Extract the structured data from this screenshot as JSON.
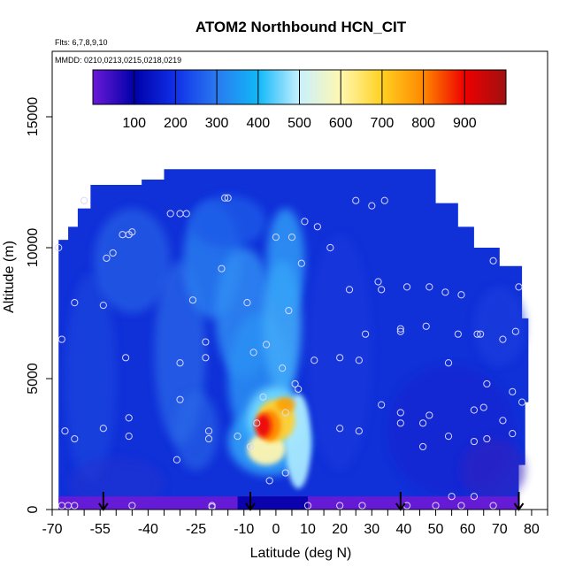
{
  "chart_data": {
    "type": "heatmap",
    "title": "ATOM2 Northbound HCN_CIT",
    "flights_label": "Flts: 6,7,8,9,10",
    "dates_label": "MMDD: 0210,0213,0215,0218,0219",
    "xlabel": "Latitude (deg N)",
    "ylabel": "Altitude (m)",
    "xlim": [
      -70,
      85
    ],
    "ylim": [
      0,
      17500
    ],
    "x_ticks": [
      -70,
      -55,
      -40,
      -25,
      -10,
      0,
      10,
      20,
      30,
      40,
      50,
      60,
      70,
      80
    ],
    "y_ticks": [
      0,
      5000,
      10000,
      15000
    ],
    "colorbar": {
      "range": [
        0,
        1000
      ],
      "ticks": [
        100,
        200,
        300,
        400,
        500,
        600,
        700,
        800,
        900
      ],
      "colors": [
        "#6a1ad6",
        "#0000a8",
        "#1030e8",
        "#2a7af0",
        "#10b8f8",
        "#c8f0ff",
        "#fff8b0",
        "#ffd020",
        "#ff8800",
        "#ee0000",
        "#a01010"
      ]
    },
    "arrows_latitude": [
      -54,
      -8,
      39,
      76
    ],
    "samples": [
      [
        -68,
        10000
      ],
      [
        -67,
        6500
      ],
      [
        -67,
        150
      ],
      [
        -65,
        150
      ],
      [
        -63,
        150
      ],
      [
        -66,
        3000
      ],
      [
        -63,
        2700
      ],
      [
        -63,
        7900
      ],
      [
        -60,
        11800
      ],
      [
        -54,
        3100
      ],
      [
        -53,
        9600
      ],
      [
        -54,
        7800
      ],
      [
        -51,
        9800
      ],
      [
        -48,
        10500
      ],
      [
        -46,
        10500
      ],
      [
        -45,
        10600
      ],
      [
        -47,
        5800
      ],
      [
        -46,
        3500
      ],
      [
        -46,
        2800
      ],
      [
        -45,
        150
      ],
      [
        -33,
        11300
      ],
      [
        -30,
        11300
      ],
      [
        -28,
        11300
      ],
      [
        -30,
        4200
      ],
      [
        -31,
        1900
      ],
      [
        -30,
        5600
      ],
      [
        -26,
        8000
      ],
      [
        -22,
        6400
      ],
      [
        -22,
        5800
      ],
      [
        -21,
        3000
      ],
      [
        -21,
        2700
      ],
      [
        -20,
        150
      ],
      [
        -20,
        100
      ],
      [
        -16,
        11900
      ],
      [
        -15,
        11900
      ],
      [
        -17,
        9200
      ],
      [
        -12,
        2800
      ],
      [
        -9,
        7900
      ],
      [
        -8,
        2400
      ],
      [
        -7,
        6000
      ],
      [
        -6,
        3300
      ],
      [
        -4,
        4300
      ],
      [
        -3,
        6300
      ],
      [
        -2,
        1100
      ],
      [
        0,
        10400
      ],
      [
        2,
        5400
      ],
      [
        3,
        3700
      ],
      [
        3,
        1400
      ],
      [
        4,
        7600
      ],
      [
        5,
        10400
      ],
      [
        6,
        4800
      ],
      [
        7,
        4600
      ],
      [
        8,
        9400
      ],
      [
        9,
        11000
      ],
      [
        10,
        150
      ],
      [
        12,
        5700
      ],
      [
        13,
        10800
      ],
      [
        17,
        10000
      ],
      [
        20,
        3100
      ],
      [
        20,
        5800
      ],
      [
        20,
        150
      ],
      [
        23,
        8400
      ],
      [
        25,
        11800
      ],
      [
        26,
        5700
      ],
      [
        26,
        3000
      ],
      [
        27,
        150
      ],
      [
        28,
        6700
      ],
      [
        30,
        11600
      ],
      [
        32,
        8700
      ],
      [
        33,
        8400
      ],
      [
        33,
        4000
      ],
      [
        34,
        11800
      ],
      [
        39,
        6900
      ],
      [
        39,
        6800
      ],
      [
        39,
        3700
      ],
      [
        39,
        3300
      ],
      [
        41,
        8500
      ],
      [
        41,
        150
      ],
      [
        46,
        2400
      ],
      [
        46,
        3300
      ],
      [
        47,
        7000
      ],
      [
        48,
        3600
      ],
      [
        48,
        8500
      ],
      [
        50,
        150
      ],
      [
        53,
        8300
      ],
      [
        54,
        5600
      ],
      [
        54,
        2800
      ],
      [
        55,
        500
      ],
      [
        57,
        6700
      ],
      [
        58,
        8200
      ],
      [
        58,
        150
      ],
      [
        62,
        3800
      ],
      [
        62,
        2600
      ],
      [
        62,
        500
      ],
      [
        63,
        6700
      ],
      [
        64,
        6700
      ],
      [
        65,
        3900
      ],
      [
        66,
        4800
      ],
      [
        66,
        2700
      ],
      [
        68,
        9500
      ],
      [
        68,
        150
      ],
      [
        71,
        6500
      ],
      [
        71,
        3400
      ],
      [
        74,
        2900
      ],
      [
        74,
        4500
      ],
      [
        75,
        6800
      ],
      [
        76,
        8500
      ],
      [
        77,
        4100
      ]
    ]
  }
}
